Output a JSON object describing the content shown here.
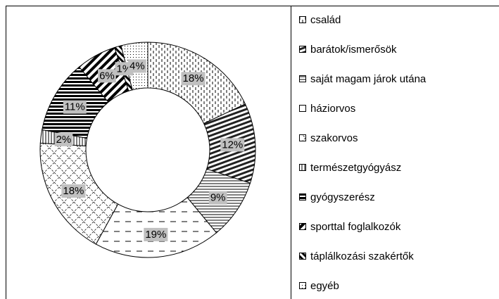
{
  "chart_data": {
    "type": "donut",
    "categories": [
      "család",
      "barátok/ismerősök",
      "saját magam járok utána",
      "háziorvos",
      "szakorvos",
      "természetgyógyász",
      "gyógyszerész",
      "sporttal foglalkozók",
      "táplálkozási szakértők",
      "egyéb"
    ],
    "values": [
      18,
      12,
      9,
      19,
      18,
      2,
      11,
      6,
      1,
      4
    ],
    "value_labels": [
      "18%",
      "12%",
      "9%",
      "19%",
      "18%",
      "2%",
      "11%",
      "6%",
      "1%",
      "4%"
    ]
  }
}
